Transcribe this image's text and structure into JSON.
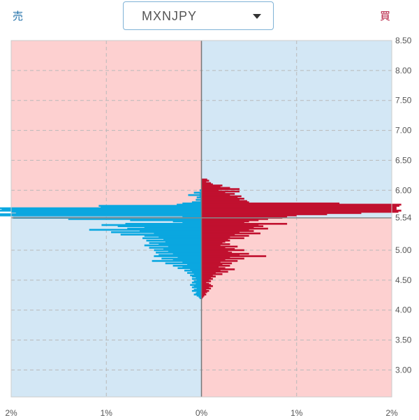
{
  "header": {
    "sell_label": "売",
    "buy_label": "買",
    "pair": "MXNJPY"
  },
  "colors": {
    "sell": "#1f6fa8",
    "buy": "#b3163a",
    "sell_bar": "#0aa7e0",
    "buy_bar": "#c1102f",
    "pink_bg": "#fdd0d0",
    "blue_bg": "#d3e7f5",
    "current_price_line": "#888888"
  },
  "icons": {
    "dropdown": "caret-down-icon"
  },
  "chart_data": {
    "type": "bar",
    "orientation": "horizontal",
    "title": "",
    "xlabel": "",
    "ylabel": "",
    "xlim": [
      -2,
      2
    ],
    "ylim": [
      2.55,
      8.5
    ],
    "x_tick_labels": [
      "2%",
      "1%",
      "0%",
      "1%",
      "2%"
    ],
    "x_tick_values": [
      -2,
      -1,
      0,
      1,
      2
    ],
    "y_ticks": [
      8.5,
      8.0,
      7.5,
      7.0,
      6.5,
      6.0,
      5.54,
      5.0,
      4.5,
      4.0,
      3.5,
      3.0
    ],
    "y_tick_labels": [
      "8.50",
      "8.00",
      "7.50",
      "7.00",
      "6.50",
      "6.00",
      "5.54",
      "5.00",
      "4.50",
      "4.00",
      "3.50",
      "3.00"
    ],
    "current_price": 5.54,
    "grid": true,
    "series": [
      {
        "price_levels": [
          6.18,
          6.16,
          6.14,
          6.12,
          6.1,
          6.08,
          6.06,
          6.04,
          6.02,
          6.0,
          5.98,
          5.96,
          5.94,
          5.92,
          5.9,
          5.88,
          5.86,
          5.84,
          5.82,
          5.8,
          5.78,
          5.76,
          5.74,
          5.72,
          5.7,
          5.68,
          5.66,
          5.64,
          5.62,
          5.6,
          5.58,
          5.56,
          5.54,
          5.52,
          5.5,
          5.48,
          5.46,
          5.44,
          5.42,
          5.4,
          5.38,
          5.36,
          5.34,
          5.32,
          5.3,
          5.28,
          5.26,
          5.24,
          5.22,
          5.2,
          5.18,
          5.16,
          5.14,
          5.12,
          5.1,
          5.08,
          5.06,
          5.04,
          5.02,
          5.0,
          4.98,
          4.96,
          4.94,
          4.92,
          4.9,
          4.88,
          4.86,
          4.84,
          4.82,
          4.8,
          4.78,
          4.76,
          4.74,
          4.72,
          4.7,
          4.68,
          4.66,
          4.64,
          4.62,
          4.6,
          4.58,
          4.56,
          4.54,
          4.52,
          4.5,
          4.48,
          4.46,
          4.44,
          4.42,
          4.4,
          4.38,
          4.36,
          4.34,
          4.32,
          4.3,
          4.28,
          4.26,
          4.24,
          4.22,
          4.2
        ],
        "values": [
          0,
          0,
          0,
          0,
          0,
          0,
          0,
          0,
          0,
          0.02,
          0.01,
          0.08,
          0.02,
          0.14,
          0.02,
          0.05,
          0.01,
          0.06,
          0.01,
          0.1,
          0.2,
          0.26,
          1.08,
          1.06,
          2.15,
          2.1,
          2.2,
          2.0,
          1.95,
          2.2,
          2.12,
          0.2,
          1.98,
          1.4,
          0.75,
          0.3,
          0.2,
          0.8,
          1.05,
          0.88,
          0.6,
          0.78,
          1.18,
          0.65,
          0.95,
          0.5,
          0.85,
          0.6,
          0.45,
          0.62,
          0.4,
          0.58,
          0.38,
          0.55,
          0.45,
          0.6,
          0.35,
          0.55,
          0.4,
          0.5,
          0.35,
          0.48,
          0.3,
          0.45,
          0.5,
          0.25,
          0.42,
          0.3,
          0.52,
          0.2,
          0.38,
          0.15,
          0.3,
          0.2,
          0.25,
          0.12,
          0.18,
          0.1,
          0.15,
          0.08,
          0.12,
          0.1,
          0.06,
          0.1,
          0.05,
          0.08,
          0.1,
          0.06,
          0.12,
          0.08,
          0.1,
          0.05,
          0.08,
          0.1,
          0.05,
          0.06,
          0.08,
          0.05,
          0.03,
          0.02
        ]
      },
      {
        "price_levels": [
          6.18,
          6.16,
          6.14,
          6.12,
          6.1,
          6.08,
          6.06,
          6.04,
          6.02,
          6.0,
          5.98,
          5.96,
          5.94,
          5.92,
          5.9,
          5.88,
          5.86,
          5.84,
          5.82,
          5.8,
          5.78,
          5.76,
          5.74,
          5.72,
          5.7,
          5.68,
          5.66,
          5.64,
          5.62,
          5.6,
          5.58,
          5.56,
          5.54,
          5.52,
          5.5,
          5.48,
          5.46,
          5.44,
          5.42,
          5.4,
          5.38,
          5.36,
          5.34,
          5.32,
          5.3,
          5.28,
          5.26,
          5.24,
          5.22,
          5.2,
          5.18,
          5.16,
          5.14,
          5.12,
          5.1,
          5.08,
          5.06,
          5.04,
          5.02,
          5.0,
          4.98,
          4.96,
          4.94,
          4.92,
          4.9,
          4.88,
          4.86,
          4.84,
          4.82,
          4.8,
          4.78,
          4.76,
          4.74,
          4.72,
          4.7,
          4.68,
          4.66,
          4.64,
          4.62,
          4.6,
          4.58,
          4.56,
          4.54,
          4.52,
          4.5,
          4.48,
          4.46,
          4.44,
          4.42,
          4.4,
          4.38,
          4.36,
          4.34,
          4.32,
          4.3,
          4.28,
          4.26,
          4.24,
          4.22,
          4.2
        ],
        "values": [
          0.06,
          0.08,
          0.05,
          0.1,
          0.12,
          0.22,
          0.2,
          0.3,
          0.4,
          0.18,
          0.4,
          0.25,
          0.35,
          0.3,
          0.42,
          0.38,
          0.45,
          0.4,
          0.48,
          0.5,
          1.45,
          2.1,
          2.08,
          2.05,
          2.05,
          2.05,
          2.1,
          2.07,
          1.68,
          1.32,
          1.0,
          0.9,
          0.85,
          0.7,
          0.6,
          0.5,
          0.45,
          0.9,
          0.6,
          0.65,
          0.55,
          0.7,
          0.5,
          0.55,
          0.4,
          0.62,
          0.35,
          0.5,
          0.3,
          0.45,
          0.28,
          0.3,
          0.25,
          0.22,
          0.3,
          0.2,
          0.38,
          0.25,
          0.35,
          0.45,
          0.28,
          0.32,
          0.5,
          0.4,
          0.68,
          0.3,
          0.45,
          0.25,
          0.38,
          0.2,
          0.32,
          0.22,
          0.3,
          0.18,
          0.25,
          0.35,
          0.2,
          0.28,
          0.15,
          0.22,
          0.12,
          0.15,
          0.1,
          0.12,
          0.08,
          0.1,
          0.05,
          0.08,
          0.1,
          0.12,
          0.08,
          0.1,
          0.05,
          0.08,
          0.06,
          0.04,
          0.05,
          0.03,
          0.02,
          0.01
        ]
      }
    ]
  }
}
